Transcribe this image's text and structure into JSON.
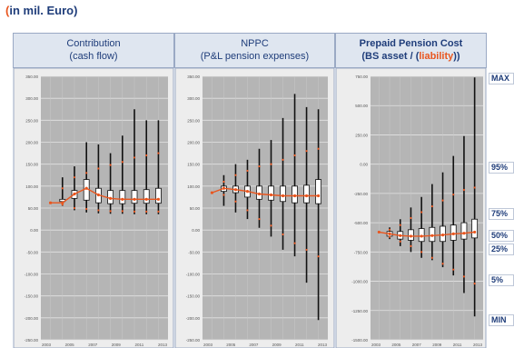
{
  "header": {
    "unit_prefix": "(",
    "unit_text": "in mil. Euro)"
  },
  "panels": [
    {
      "title_line1": "Contribution",
      "title_line2": "(cash flow)"
    },
    {
      "title_line1": "NPPC",
      "title_line2": "(P&L pension expenses)"
    },
    {
      "title_line1": "Prepaid Pension Cost",
      "title_line2_pre": "(BS asset / (",
      "title_line2_liab": "liability",
      "title_line2_post": "))"
    }
  ],
  "percentile_labels": [
    "MAX",
    "95%",
    "75%",
    "50%",
    "25%",
    "5%",
    "MIN"
  ],
  "colors": {
    "plot_bg": "#b5b5b5",
    "grid": "#e4e4e4",
    "whisker": "#111111",
    "box_fill": "#ffffff",
    "median_line": "#e8561f",
    "percentile_dots": "#e8561f",
    "title": "#1f3d7a"
  },
  "chart_data": [
    {
      "type": "box",
      "title": "Contribution (cash flow)",
      "yticks": [
        "350.00",
        "300.00",
        "250.00",
        "200.00",
        "150.00",
        "100.00",
        "50.00",
        "0.00",
        "-50.00",
        "-100.00",
        "-150.00",
        "-200.00",
        "-250.00"
      ],
      "xticks": [
        "2003",
        "2005",
        "2007",
        "2009",
        "2011",
        "2013"
      ],
      "ylim": [
        -250,
        350
      ],
      "x": [
        2004,
        2005,
        2006,
        2007,
        2008,
        2009,
        2010,
        2011,
        2012,
        2013
      ],
      "min": [
        62,
        55,
        45,
        40,
        38,
        37,
        37,
        36,
        36,
        36
      ],
      "p25": [
        62,
        65,
        72,
        68,
        62,
        60,
        60,
        61,
        61,
        61
      ],
      "median": [
        62,
        62,
        82,
        95,
        80,
        72,
        70,
        70,
        70,
        70
      ],
      "p75": [
        62,
        70,
        90,
        115,
        95,
        90,
        90,
        90,
        92,
        95
      ],
      "max": [
        62,
        120,
        145,
        200,
        195,
        175,
        215,
        275,
        250,
        250
      ],
      "p95": [
        62,
        95,
        120,
        130,
        140,
        148,
        155,
        165,
        170,
        175
      ],
      "p5": [
        62,
        58,
        50,
        48,
        45,
        43,
        43,
        42,
        42,
        42
      ]
    },
    {
      "type": "box",
      "title": "NPPC (P&L pension expenses)",
      "yticks": [
        "350.00",
        "300.00",
        "250.00",
        "200.00",
        "150.00",
        "100.00",
        "50.00",
        "0.00",
        "-50.00",
        "-100.00",
        "-150.00",
        "-200.00",
        "-250.00"
      ],
      "xticks": [
        "2003",
        "2005",
        "2007",
        "2009",
        "2011",
        "2013"
      ],
      "ylim": [
        -250,
        350
      ],
      "x": [
        2004,
        2005,
        2006,
        2007,
        2008,
        2009,
        2010,
        2011,
        2012,
        2013
      ],
      "min": [
        85,
        55,
        40,
        25,
        5,
        -15,
        -45,
        -60,
        -120,
        -205
      ],
      "p25": [
        85,
        88,
        85,
        75,
        70,
        68,
        65,
        62,
        62,
        60
      ],
      "median": [
        85,
        95,
        92,
        88,
        82,
        80,
        78,
        78,
        78,
        78
      ],
      "p75": [
        85,
        100,
        100,
        100,
        100,
        100,
        100,
        100,
        102,
        115
      ],
      "max": [
        85,
        125,
        150,
        160,
        185,
        205,
        255,
        310,
        280,
        275
      ],
      "p95": [
        85,
        110,
        125,
        135,
        145,
        150,
        160,
        170,
        180,
        185
      ],
      "p5": [
        85,
        80,
        65,
        45,
        25,
        10,
        -10,
        -30,
        -45,
        -60
      ]
    },
    {
      "type": "box",
      "title": "Prepaid Pension Cost (BS asset / (liability))",
      "yticks": [
        "750.00",
        "500.00",
        "250.00",
        "0.00",
        "-250.00",
        "-500.00",
        "-750.00",
        "-1000.00",
        "-1250.00",
        "-1500.00"
      ],
      "xticks": [
        "2003",
        "2005",
        "2007",
        "2009",
        "2011",
        "2013"
      ],
      "ylim": [
        -1500,
        750
      ],
      "x": [
        2004,
        2005,
        2006,
        2007,
        2008,
        2009,
        2010,
        2011,
        2012,
        2013
      ],
      "min": [
        -580,
        -640,
        -700,
        -750,
        -800,
        -820,
        -880,
        -950,
        -1100,
        -1300
      ],
      "p25": [
        -580,
        -615,
        -640,
        -650,
        -660,
        -660,
        -660,
        -650,
        -640,
        -630
      ],
      "median": [
        -580,
        -595,
        -610,
        -615,
        -615,
        -610,
        -605,
        -595,
        -590,
        -580
      ],
      "p75": [
        -580,
        -575,
        -575,
        -560,
        -550,
        -540,
        -530,
        -520,
        -500,
        -470
      ],
      "max": [
        -580,
        -540,
        -470,
        -370,
        -280,
        -170,
        -70,
        70,
        240,
        740
      ],
      "p95": [
        -580,
        -560,
        -520,
        -460,
        -410,
        -360,
        -310,
        -260,
        -220,
        -200
      ],
      "p5": [
        -580,
        -620,
        -660,
        -700,
        -750,
        -800,
        -850,
        -900,
        -960,
        -1020
      ]
    }
  ]
}
